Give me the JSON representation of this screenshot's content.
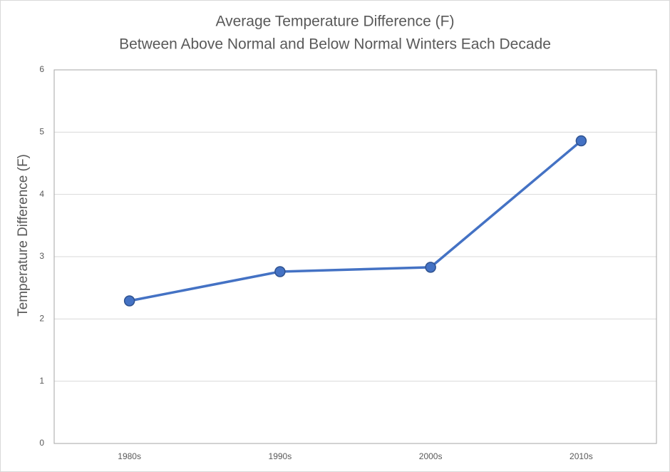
{
  "chart_data": {
    "type": "line",
    "title": [
      "Average Temperature Difference (F)",
      "Between Above Normal and Below Normal Winters Each Decade"
    ],
    "y_label": "Temperature Difference (F)",
    "categories": [
      "1980s",
      "1990s",
      "2000s",
      "2010s"
    ],
    "series": [
      {
        "color": "#4472c4",
        "values": [
          2.29,
          2.76,
          2.83,
          4.86
        ]
      }
    ],
    "ylim": [
      0,
      6
    ],
    "yticks": [
      0,
      1,
      2,
      3,
      4,
      5,
      6
    ],
    "grid": true
  }
}
